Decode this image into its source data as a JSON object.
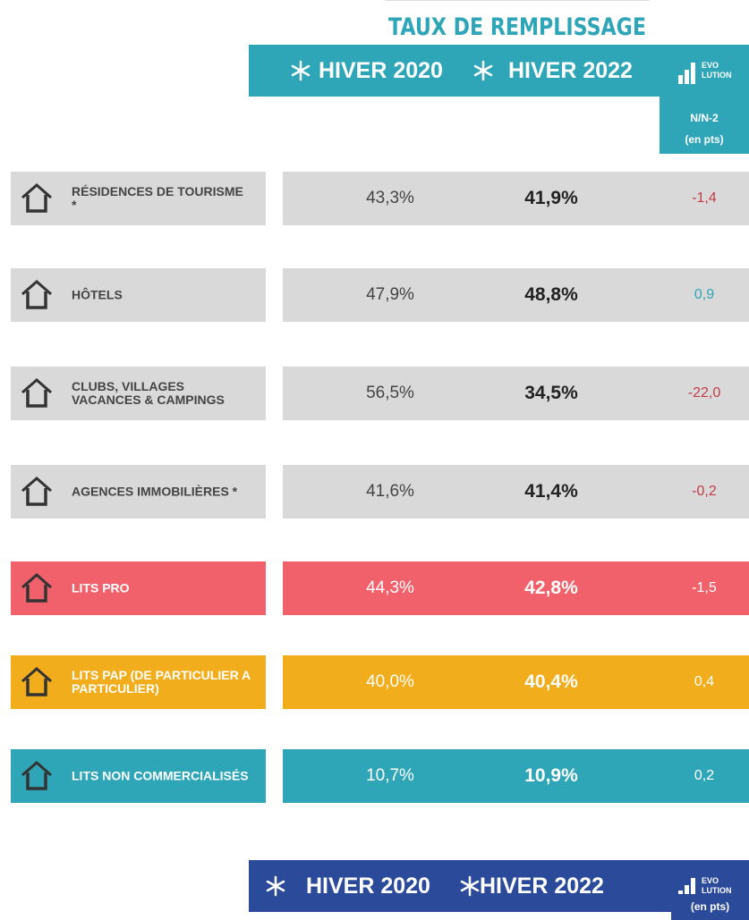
{
  "header": {
    "title": "TAUX DE REMPLISSAGE",
    "col1": "HIVER 2020",
    "col2": "HIVER 2022",
    "logo_top": "EVO",
    "logo_bottom": "LUTION",
    "evolution": "N/N-2",
    "unit": "(en pts)"
  },
  "table": {
    "rows": [
      {
        "label": "RÉSIDENCES DE TOURISME *",
        "v2020": "43,3%",
        "v2022": "41,9%",
        "evolution": "-1,4",
        "color": "gray"
      },
      {
        "label": "HÔTELS",
        "v2020": "47,9%",
        "v2022": "48,8%",
        "evolution": "0,9",
        "color": "gray"
      },
      {
        "label": "CLUBS, VILLAGES VACANCES & CAMPINGS",
        "v2020": "56,5%",
        "v2022": "34,5%",
        "evolution": "-22,0",
        "color": "gray"
      },
      {
        "label": "AGENCES IMMOBILIÈRES *",
        "v2020": "41,6%",
        "v2022": "41,4%",
        "evolution": "-0,2",
        "color": "gray"
      },
      {
        "label": "LITS PRO",
        "v2020": "44,3%",
        "v2022": "42,8%",
        "evolution": "-1,5",
        "color": "red"
      },
      {
        "label": "LITS PAP (DE PARTICULIER A PARTICULIER)",
        "v2020": "40,0%",
        "v2022": "40,4%",
        "evolution": "0,4",
        "color": "yellow"
      },
      {
        "label": "LITS NON COMMERCIALISÉS",
        "v2020": "10,7%",
        "v2022": "10,9%",
        "evolution": "0,2",
        "color": "teal"
      }
    ]
  },
  "footer": {
    "col1": "HIVER 2020",
    "col2": "HIVER 2022",
    "logo_top": "EVO",
    "logo_bottom": "LUTION",
    "unit": "(en pts)"
  }
}
